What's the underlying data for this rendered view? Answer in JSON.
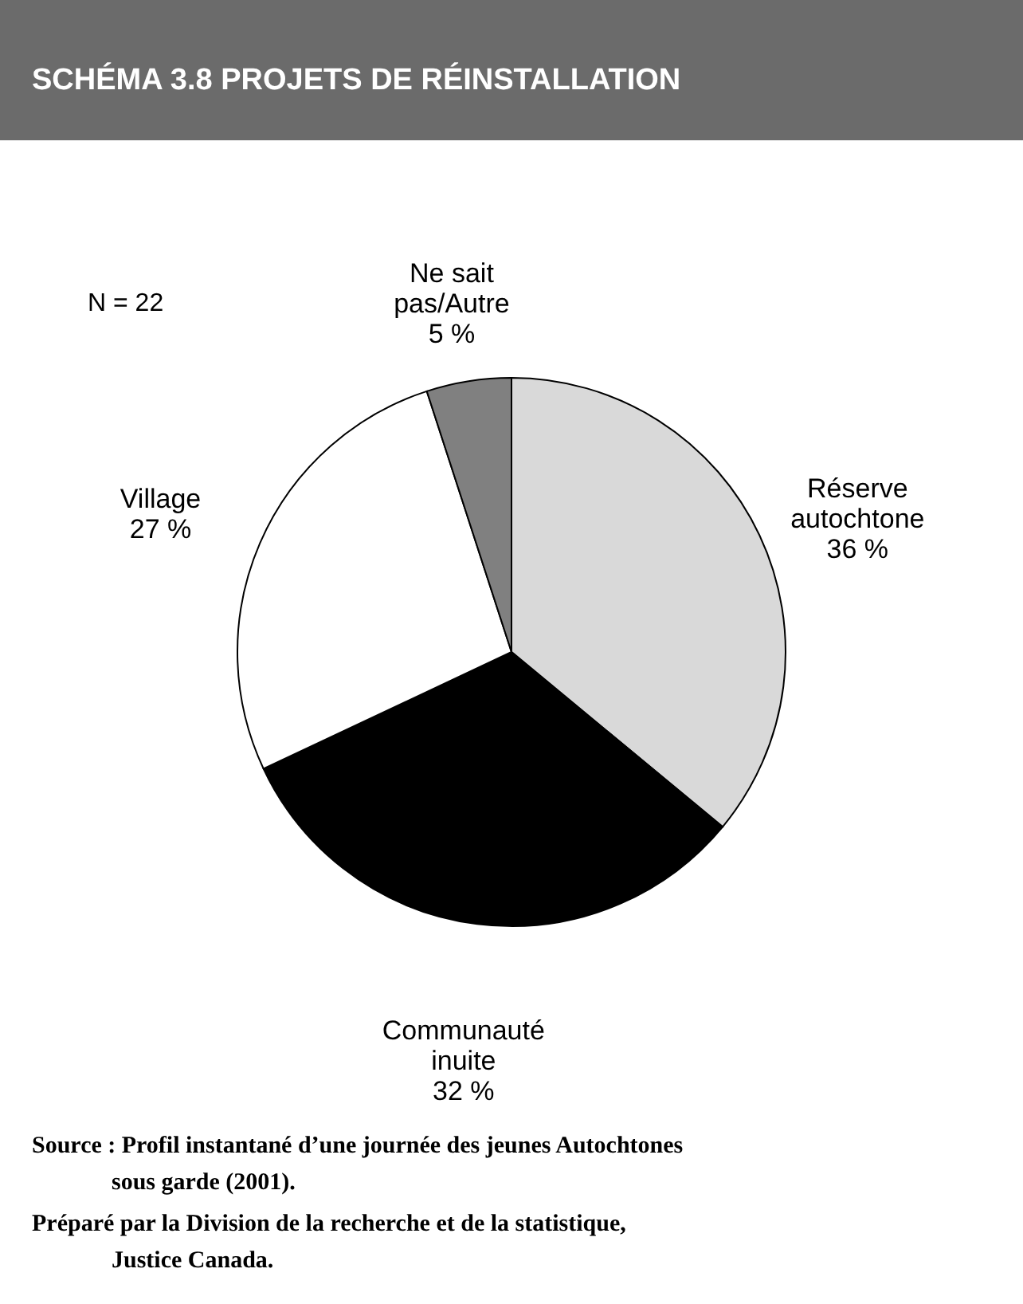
{
  "chart_data": {
    "type": "pie",
    "title": "SCHÉMA 3.8   PROJETS DE RÉINSTALLATION",
    "categories": [
      "Réserve autochtone",
      "Communauté inuite",
      "Village",
      "Ne sait pas/Autre"
    ],
    "values": [
      36,
      32,
      27,
      5
    ],
    "colors": [
      "#d9d9d9",
      "#000000",
      "#ffffff",
      "#808080"
    ],
    "value_labels": [
      "36 %",
      "32 %",
      "27 %",
      "5 %"
    ],
    "annotations": [
      "N = 22",
      "Source : Profil instantané d’une journée des jeunes Autochtones sous garde (2001).",
      "Préparé par la Division de la recherche et de la statistique, Justice Canada."
    ]
  }
}
